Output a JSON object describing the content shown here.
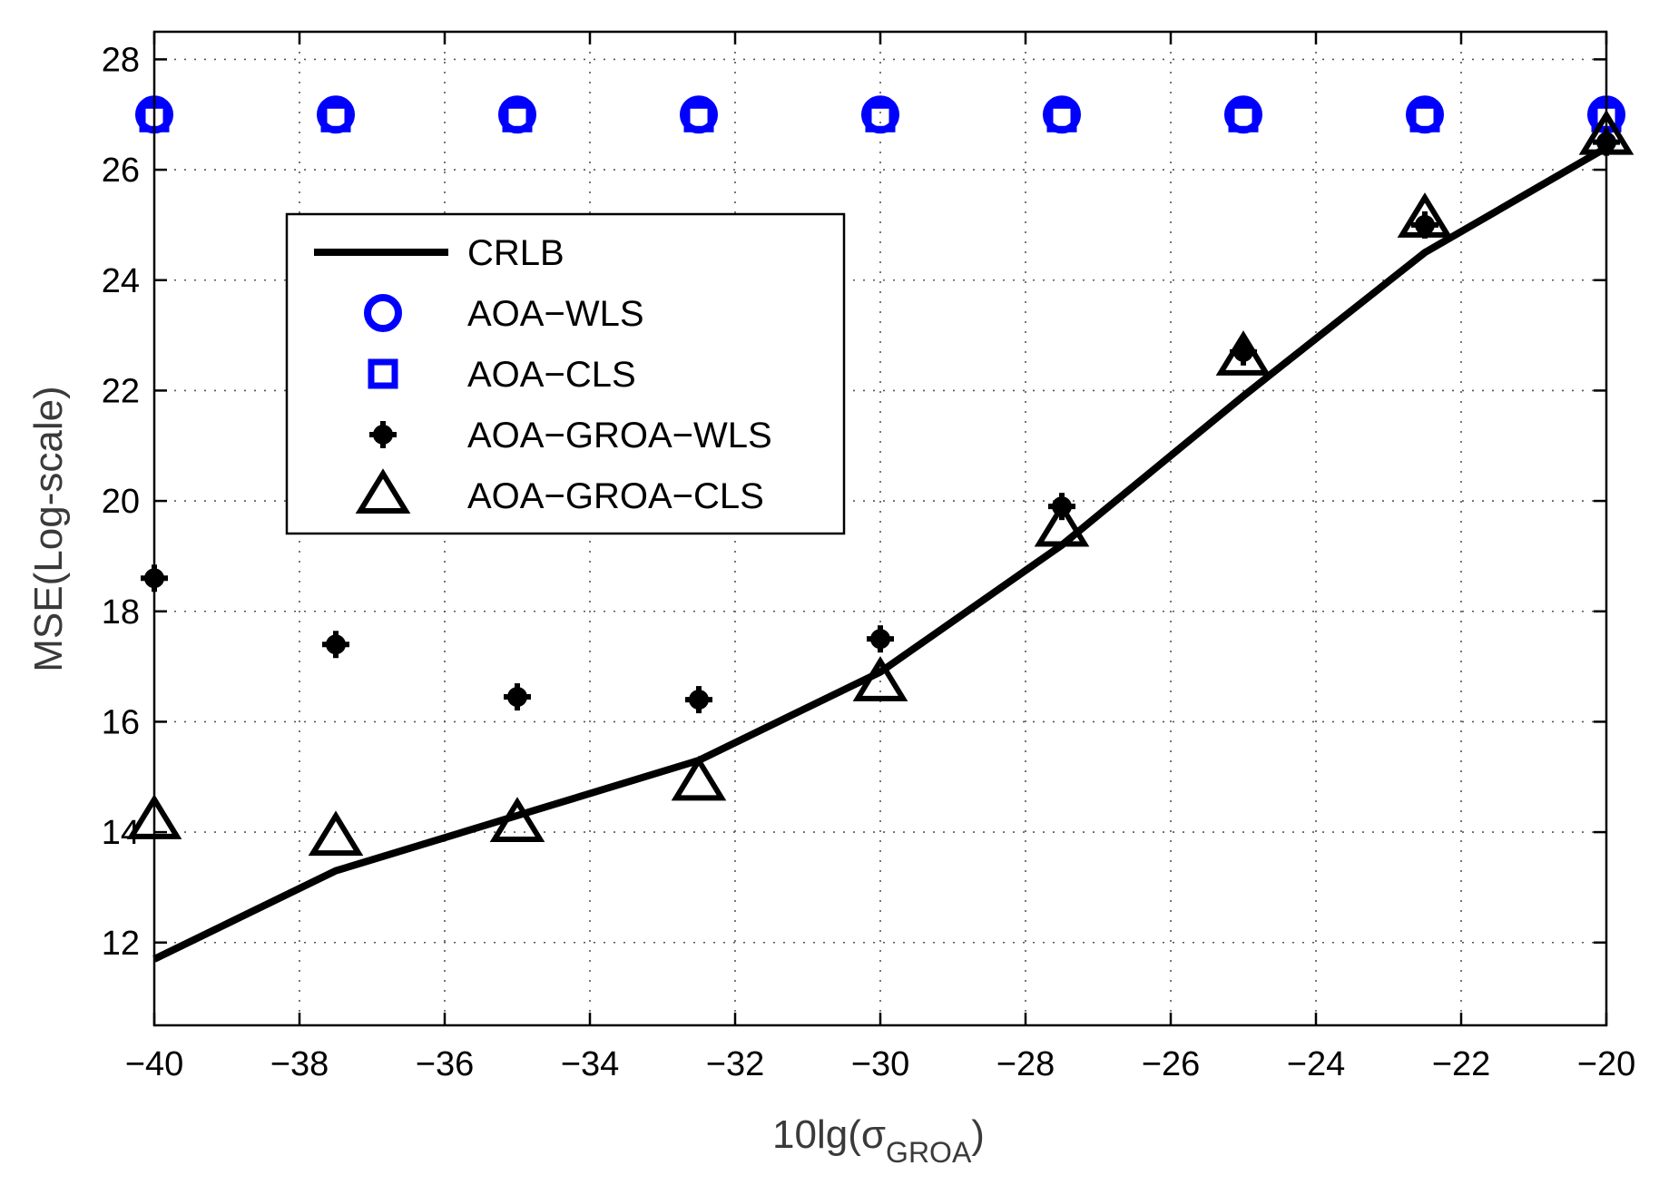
{
  "chart_data": {
    "type": "line",
    "xlabel": "10lg(σ",
    "xlabel_sub": "GROA",
    "xlabel_close": ")",
    "ylabel": "MSE(Log-scale)",
    "xlim": [
      -40,
      -20
    ],
    "ylim": [
      10.5,
      28.5
    ],
    "xticks": [
      -40,
      -38,
      -36,
      -34,
      -32,
      -30,
      -28,
      -26,
      -24,
      -22,
      -20
    ],
    "yticks": [
      12,
      14,
      16,
      18,
      20,
      22,
      24,
      26,
      28
    ],
    "xtick_labels": [
      "−40",
      "−38",
      "−36",
      "−34",
      "−32",
      "−30",
      "−28",
      "−26",
      "−24",
      "−22",
      "−20"
    ],
    "ytick_labels": [
      "12",
      "14",
      "16",
      "18",
      "20",
      "22",
      "24",
      "26",
      "28"
    ],
    "grid": true,
    "legend_position": "upper-left",
    "x": [
      -40,
      -37.5,
      -35,
      -32.5,
      -30,
      -27.5,
      -25,
      -22.5,
      -20
    ],
    "series": [
      {
        "name": "CRLB",
        "marker": "line",
        "color": "#000000",
        "values": [
          11.7,
          13.3,
          14.3,
          15.3,
          16.9,
          19.2,
          21.9,
          24.5,
          26.4
        ]
      },
      {
        "name": "AOA−WLS",
        "marker": "circle",
        "color": "#0000ff",
        "values": [
          27.0,
          27.0,
          27.0,
          27.0,
          27.0,
          27.0,
          27.0,
          27.0,
          27.0
        ]
      },
      {
        "name": "AOA−CLS",
        "marker": "square",
        "color": "#0000ff",
        "values": [
          26.95,
          26.95,
          26.95,
          26.95,
          26.95,
          26.95,
          26.95,
          26.95,
          26.95
        ]
      },
      {
        "name": "AOA−GROA−WLS",
        "marker": "plus-dot",
        "color": "#000000",
        "values": [
          18.6,
          17.4,
          16.45,
          16.4,
          17.5,
          19.9,
          22.7,
          25.0,
          26.5
        ]
      },
      {
        "name": "AOA−GROA−CLS",
        "marker": "triangle",
        "color": "#000000",
        "values": [
          14.2,
          13.9,
          14.15,
          14.9,
          16.7,
          19.5,
          22.6,
          25.1,
          26.6
        ]
      }
    ]
  }
}
